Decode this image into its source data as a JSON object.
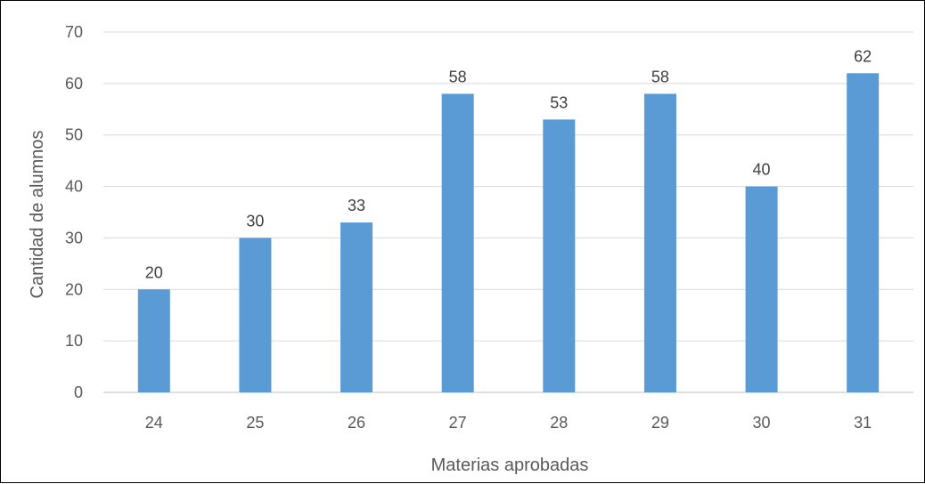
{
  "chart_data": {
    "type": "bar",
    "title": "",
    "xlabel": "Materias aprobadas",
    "ylabel": "Cantidad de alumnos",
    "categories": [
      "24",
      "25",
      "26",
      "27",
      "28",
      "29",
      "30",
      "31"
    ],
    "series": [
      {
        "values": [
          20,
          30,
          33,
          58,
          53,
          58,
          40,
          62
        ]
      }
    ],
    "data_labels": [
      "20",
      "30",
      "33",
      "58",
      "53",
      "58",
      "40",
      "62"
    ],
    "ylim": [
      0,
      70
    ],
    "yticks": [
      "0",
      "10",
      "20",
      "30",
      "40",
      "50",
      "60",
      "70"
    ],
    "grid": true,
    "legend": "none",
    "bar_color": "#5B9BD5",
    "grid_color": "#D9D9D9"
  }
}
